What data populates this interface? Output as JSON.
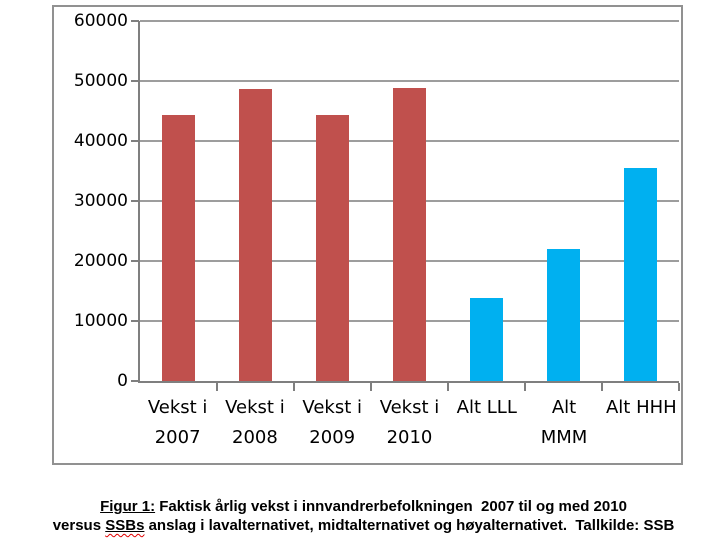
{
  "chart_data": {
    "type": "bar",
    "title": "",
    "categories": [
      "Vekst i 2007",
      "Vekst i 2008",
      "Vekst i 2009",
      "Vekst i 2010",
      "Alt LLL",
      "Alt MMM",
      "Alt HHH"
    ],
    "category_label_lines": [
      [
        "Vekst i",
        "2007"
      ],
      [
        "Vekst i",
        "2008"
      ],
      [
        "Vekst i",
        "2009"
      ],
      [
        "Vekst i",
        "2010"
      ],
      [
        "Alt LLL"
      ],
      [
        "Alt",
        "MMM"
      ],
      [
        "Alt HHH"
      ]
    ],
    "values": [
      44400,
      48600,
      44300,
      48800,
      13800,
      22000,
      35500
    ],
    "bar_colors": [
      "#C0504D",
      "#C0504D",
      "#C0504D",
      "#C0504D",
      "#00B0F0",
      "#00B0F0",
      "#00B0F0"
    ],
    "ylim": [
      0,
      60000
    ],
    "yticks": [
      0,
      10000,
      20000,
      30000,
      40000,
      50000,
      60000
    ],
    "ytick_labels": [
      "0",
      "10000",
      "20000",
      "30000",
      "40000",
      "50000",
      "60000"
    ],
    "xlabel": "",
    "ylabel": "",
    "grid": "horizontal",
    "legend": "none"
  },
  "colors": {
    "bar_red": "#C0504D",
    "bar_blue": "#00B0F0",
    "axis": "#7f7f7f",
    "gridline": "#9d9d9d",
    "frame_border": "#919191",
    "background": "#ffffff",
    "text": "#000000",
    "spellcheck_squiggle": "#e00000"
  },
  "caption": {
    "line1": {
      "label": "Figur 1:",
      "rest": " Faktisk årlig vekst i innvandrerbefolkningen  2007 til og med 2010"
    },
    "line2": {
      "prefix": "versus ",
      "highlighted_word": "SSBs",
      "rest": " anslag i lavalternativet, midtalternativet og høyalternativet.  Tallkilde: SSB"
    }
  }
}
